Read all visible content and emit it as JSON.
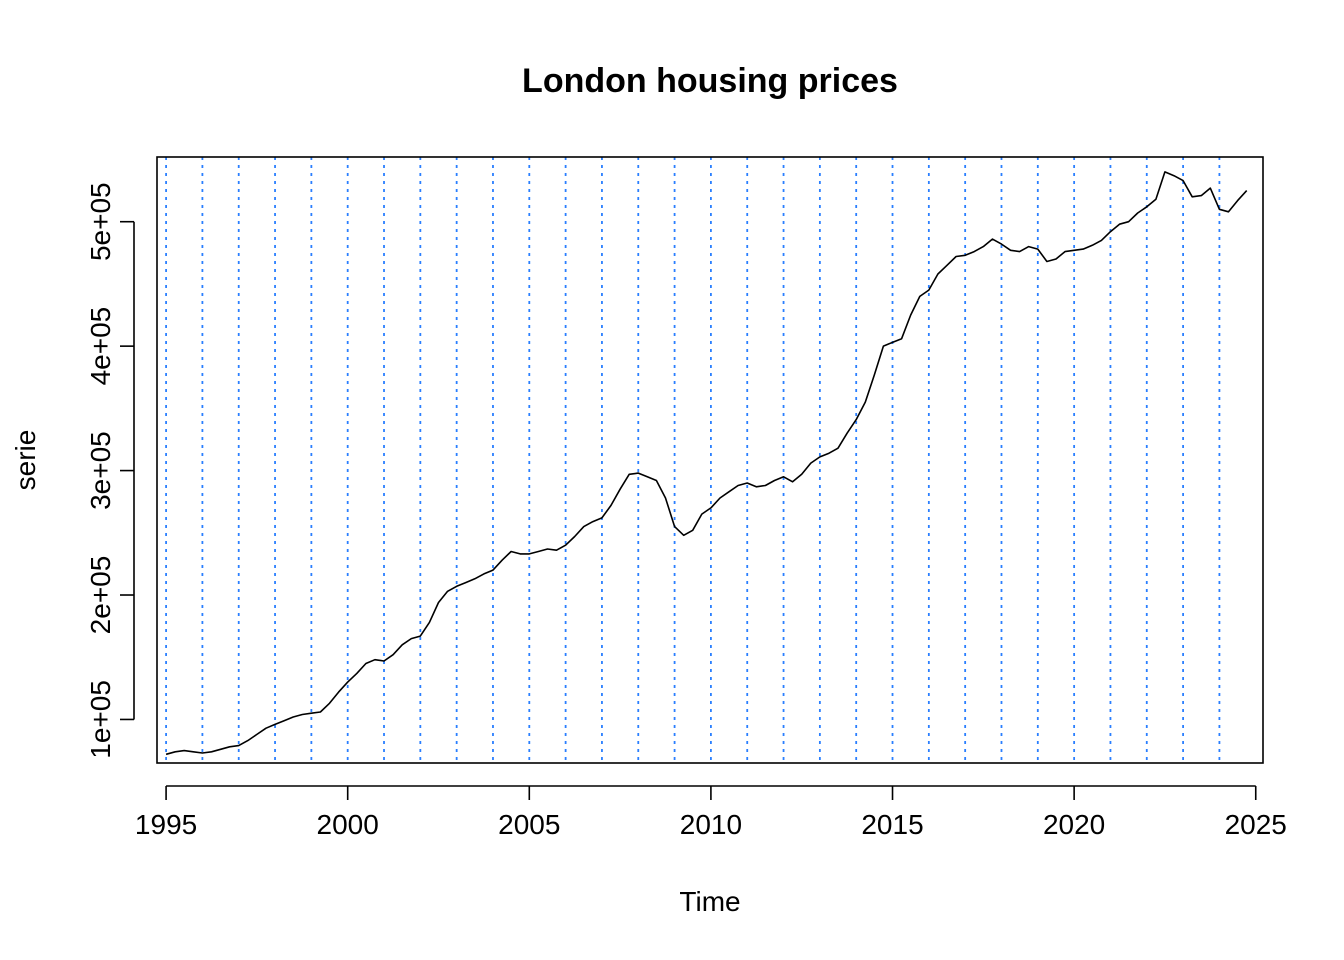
{
  "chart_data": {
    "type": "line",
    "title": "London housing prices",
    "xlabel": "Time",
    "ylabel": "serie",
    "xlim": [
      1994.75,
      2025.2
    ],
    "ylim": [
      65000,
      552000
    ],
    "x_ticks": [
      1995,
      2000,
      2005,
      2010,
      2015,
      2020,
      2025
    ],
    "x_tick_labels": [
      "1995",
      "2000",
      "2005",
      "2010",
      "2015",
      "2020",
      "2025"
    ],
    "y_ticks": [
      100000,
      200000,
      300000,
      400000,
      500000
    ],
    "y_tick_labels": [
      "1e+05",
      "2e+05",
      "3e+05",
      "4e+05",
      "5e+05"
    ],
    "vlines": [
      1995,
      1996,
      1997,
      1998,
      1999,
      2000,
      2001,
      2002,
      2003,
      2004,
      2005,
      2006,
      2007,
      2008,
      2009,
      2010,
      2011,
      2012,
      2013,
      2014,
      2015,
      2016,
      2017,
      2018,
      2019,
      2020,
      2021,
      2022,
      2023,
      2024
    ],
    "vline_color": "#2a7fff",
    "line_color": "#000000",
    "grid": false,
    "series": [
      {
        "x": [
          1995.0,
          1995.25,
          1995.5,
          1995.75,
          1996.0,
          1996.25,
          1996.5,
          1996.75,
          1997.0,
          1997.25,
          1997.5,
          1997.75,
          1998.0,
          1998.25,
          1998.5,
          1998.75,
          1999.0,
          1999.25,
          1999.5,
          1999.75,
          2000.0,
          2000.25,
          2000.5,
          2000.75,
          2001.0,
          2001.25,
          2001.5,
          2001.75,
          2002.0,
          2002.25,
          2002.5,
          2002.75,
          2003.0,
          2003.25,
          2003.5,
          2003.75,
          2004.0,
          2004.25,
          2004.5,
          2004.75,
          2005.0,
          2005.25,
          2005.5,
          2005.75,
          2006.0,
          2006.25,
          2006.5,
          2006.75,
          2007.0,
          2007.25,
          2007.5,
          2007.75,
          2008.0,
          2008.25,
          2008.5,
          2008.75,
          2009.0,
          2009.25,
          2009.5,
          2009.75,
          2010.0,
          2010.25,
          2010.5,
          2010.75,
          2011.0,
          2011.25,
          2011.5,
          2011.75,
          2012.0,
          2012.25,
          2012.5,
          2012.75,
          2013.0,
          2013.25,
          2013.5,
          2013.75,
          2014.0,
          2014.25,
          2014.5,
          2014.75,
          2015.0,
          2015.25,
          2015.5,
          2015.75,
          2016.0,
          2016.25,
          2016.5,
          2016.75,
          2017.0,
          2017.25,
          2017.5,
          2017.75,
          2018.0,
          2018.25,
          2018.5,
          2018.75,
          2019.0,
          2019.25,
          2019.5,
          2019.75,
          2020.0,
          2020.25,
          2020.5,
          2020.75,
          2021.0,
          2021.25,
          2021.5,
          2021.75,
          2022.0,
          2022.25,
          2022.5,
          2022.75,
          2023.0,
          2023.25,
          2023.5,
          2023.75,
          2024.0,
          2024.25,
          2024.5,
          2024.75
        ],
        "y": [
          72000,
          74000,
          75000,
          74000,
          73000,
          74000,
          76000,
          78000,
          79000,
          83000,
          88000,
          93000,
          96000,
          99000,
          102000,
          104000,
          105000,
          106000,
          113000,
          122000,
          130000,
          137000,
          145000,
          148000,
          147000,
          152000,
          160000,
          165000,
          167000,
          178000,
          194000,
          203000,
          207000,
          210000,
          213000,
          217000,
          220000,
          228000,
          235000,
          233000,
          233000,
          235000,
          237000,
          236000,
          240000,
          247000,
          255000,
          259000,
          262000,
          272000,
          285000,
          297000,
          298000,
          295000,
          292000,
          278000,
          255000,
          248000,
          252000,
          265000,
          270000,
          278000,
          283000,
          288000,
          290000,
          287000,
          288000,
          292000,
          295000,
          291000,
          297000,
          306000,
          311000,
          314000,
          318000,
          330000,
          341000,
          355000,
          377000,
          400000,
          403000,
          406000,
          425000,
          440000,
          445000,
          458000,
          465000,
          472000,
          473000,
          476000,
          480000,
          486000,
          482000,
          477000,
          476000,
          480000,
          478000,
          468000,
          470000,
          476000,
          477000,
          478000,
          481000,
          485000,
          492000,
          498000,
          500000,
          507000,
          512000,
          518000,
          540000,
          537000,
          533000,
          520000,
          521000,
          527000,
          510000,
          508000,
          517000,
          525000
        ]
      }
    ]
  }
}
